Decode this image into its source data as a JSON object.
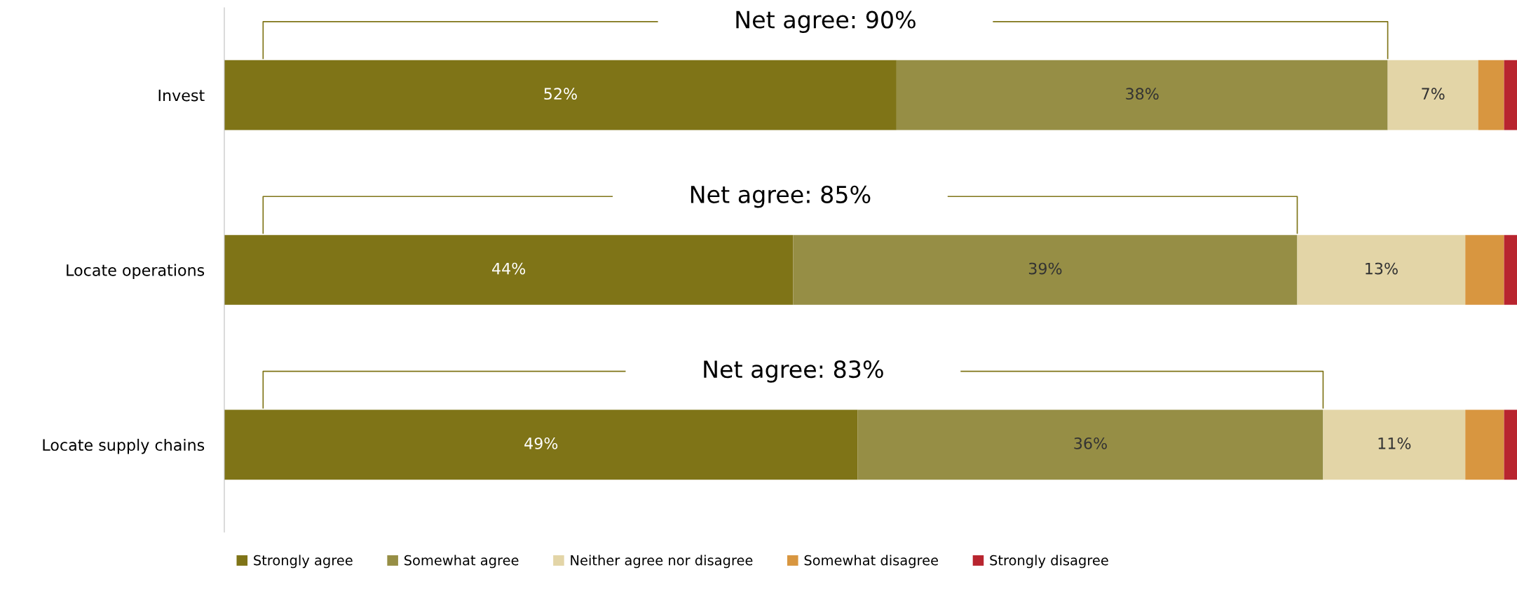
{
  "chart_data": {
    "type": "bar",
    "orientation": "horizontal",
    "stacked": true,
    "categories": [
      "Invest",
      "Locate operations",
      "Locate supply chains"
    ],
    "series": [
      {
        "name": "Strongly agree",
        "color": "#7f7417",
        "values": [
          52,
          44,
          49
        ],
        "value_labels": [
          "52%",
          "44%",
          "49%"
        ]
      },
      {
        "name": "Somewhat agree",
        "color": "#968e45",
        "values": [
          38,
          39,
          36
        ],
        "value_labels": [
          "38%",
          "39%",
          "36%"
        ]
      },
      {
        "name": "Neither agree nor disagree",
        "color": "#e3d5a7",
        "values": [
          7,
          13,
          11
        ],
        "value_labels": [
          "7%",
          "13%",
          "11%"
        ]
      },
      {
        "name": "Somewhat disagree",
        "color": "#d89640",
        "values": [
          2,
          3,
          3
        ],
        "value_labels": [
          null,
          null,
          null
        ]
      },
      {
        "name": "Strongly disagree",
        "color": "#b8252f",
        "values": [
          1,
          1,
          1
        ],
        "value_labels": [
          null,
          null,
          null
        ]
      }
    ],
    "xlim": [
      0,
      100
    ],
    "tick_labels": "y",
    "annotations": [
      "Net agree: 90%",
      "Net agree: 85%",
      "Net agree: 83%"
    ],
    "legend": "bottom",
    "grid": false
  }
}
